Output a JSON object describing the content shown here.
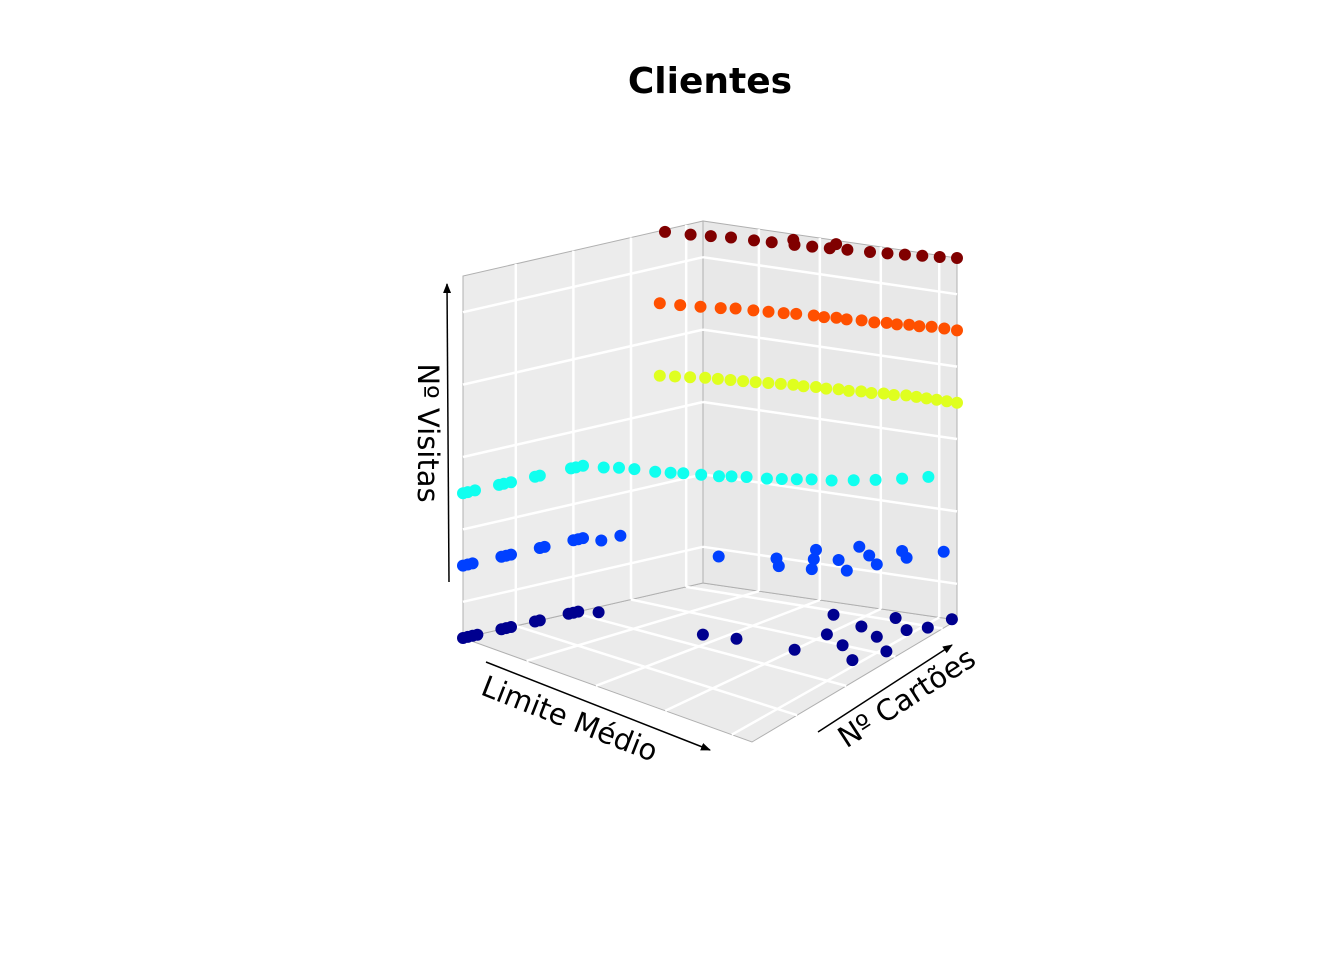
{
  "chart_data": {
    "type": "scatter",
    "projection": "3d",
    "title": "Clientes",
    "xlabel": "Limite Médio",
    "ylabel": "Nº Cartões",
    "zlabel": "Nº Visitas",
    "ticks_hidden": true,
    "grid": true,
    "colormap": "jet",
    "levels": [
      {
        "z": 0,
        "color": "#00008f"
      },
      {
        "z": 1,
        "color": "#0040ff"
      },
      {
        "z": 2,
        "color": "#10ffef"
      },
      {
        "z": 3,
        "color": "#dfff1f"
      },
      {
        "z": 4,
        "color": "#ff5000"
      },
      {
        "z": 5,
        "color": "#800000"
      }
    ],
    "points": [
      [
        0.0,
        0.0,
        0
      ],
      [
        0.02,
        0.0,
        0
      ],
      [
        0.04,
        0.0,
        0
      ],
      [
        0.06,
        0.0,
        0
      ],
      [
        0.16,
        0.0,
        0
      ],
      [
        0.18,
        0.0,
        0
      ],
      [
        0.2,
        0.0,
        0
      ],
      [
        0.3,
        0.0,
        0
      ],
      [
        0.32,
        0.0,
        0
      ],
      [
        0.44,
        0.0,
        0
      ],
      [
        0.46,
        0.0,
        0
      ],
      [
        0.48,
        0.0,
        0
      ],
      [
        0.52,
        0.04,
        0
      ],
      [
        0.55,
        0.4,
        0
      ],
      [
        0.58,
        0.5,
        0
      ],
      [
        0.6,
        0.7,
        0
      ],
      [
        0.62,
        0.9,
        0
      ],
      [
        0.7,
        0.8,
        0
      ],
      [
        0.72,
        0.95,
        0
      ],
      [
        0.75,
        0.7,
        0
      ],
      [
        0.8,
        0.85,
        0
      ],
      [
        0.85,
        0.75,
        0
      ],
      [
        0.88,
        0.9,
        0
      ],
      [
        0.9,
        0.6,
        0
      ],
      [
        0.92,
        0.95,
        0
      ],
      [
        0.95,
        0.8,
        0
      ],
      [
        1.0,
        0.98,
        0
      ],
      [
        0.0,
        0.0,
        1
      ],
      [
        0.02,
        0.0,
        1
      ],
      [
        0.04,
        0.0,
        1
      ],
      [
        0.16,
        0.0,
        1
      ],
      [
        0.18,
        0.0,
        1
      ],
      [
        0.2,
        0.0,
        1
      ],
      [
        0.32,
        0.0,
        1
      ],
      [
        0.34,
        0.0,
        1
      ],
      [
        0.46,
        0.0,
        1
      ],
      [
        0.48,
        0.0,
        1
      ],
      [
        0.5,
        0.0,
        1
      ],
      [
        0.52,
        0.05,
        1
      ],
      [
        0.6,
        0.05,
        1
      ],
      [
        0.62,
        0.4,
        1
      ],
      [
        0.65,
        0.6,
        1
      ],
      [
        0.68,
        0.7,
        1
      ],
      [
        0.7,
        0.55,
        1
      ],
      [
        0.72,
        0.8,
        1
      ],
      [
        0.75,
        0.65,
        1
      ],
      [
        0.78,
        0.72,
        1
      ],
      [
        0.8,
        0.85,
        1
      ],
      [
        0.82,
        0.6,
        1
      ],
      [
        0.85,
        0.78,
        1
      ],
      [
        0.88,
        0.9,
        1
      ],
      [
        0.9,
        0.7,
        1
      ],
      [
        0.92,
        0.85,
        1
      ],
      [
        0.96,
        0.98,
        1
      ],
      [
        0.0,
        0.0,
        2
      ],
      [
        0.02,
        0.0,
        2
      ],
      [
        0.05,
        0.0,
        2
      ],
      [
        0.15,
        0.0,
        2
      ],
      [
        0.17,
        0.0,
        2
      ],
      [
        0.2,
        0.0,
        2
      ],
      [
        0.3,
        0.0,
        2
      ],
      [
        0.32,
        0.0,
        2
      ],
      [
        0.45,
        0.0,
        2
      ],
      [
        0.47,
        0.0,
        2
      ],
      [
        0.5,
        0.0,
        2
      ],
      [
        0.53,
        0.05,
        2
      ],
      [
        0.56,
        0.08,
        2
      ],
      [
        0.58,
        0.12,
        2
      ],
      [
        0.6,
        0.18,
        2
      ],
      [
        0.62,
        0.22,
        2
      ],
      [
        0.64,
        0.25,
        2
      ],
      [
        0.66,
        0.3,
        2
      ],
      [
        0.68,
        0.35,
        2
      ],
      [
        0.7,
        0.38,
        2
      ],
      [
        0.72,
        0.42,
        2
      ],
      [
        0.74,
        0.48,
        2
      ],
      [
        0.76,
        0.52,
        2
      ],
      [
        0.78,
        0.56,
        2
      ],
      [
        0.8,
        0.6,
        2
      ],
      [
        0.82,
        0.66,
        2
      ],
      [
        0.85,
        0.72,
        2
      ],
      [
        0.88,
        0.78,
        2
      ],
      [
        0.92,
        0.85,
        2
      ],
      [
        0.96,
        0.92,
        2
      ],
      [
        0.82,
        0.0,
        3
      ],
      [
        0.84,
        0.04,
        3
      ],
      [
        0.86,
        0.08,
        3
      ],
      [
        0.88,
        0.12,
        3
      ],
      [
        0.89,
        0.16,
        3
      ],
      [
        0.9,
        0.2,
        3
      ],
      [
        0.91,
        0.24,
        3
      ],
      [
        0.92,
        0.28,
        3
      ],
      [
        0.93,
        0.32,
        3
      ],
      [
        0.94,
        0.36,
        3
      ],
      [
        0.95,
        0.4,
        3
      ],
      [
        0.95,
        0.44,
        3
      ],
      [
        0.96,
        0.48,
        3
      ],
      [
        0.96,
        0.52,
        3
      ],
      [
        0.97,
        0.56,
        3
      ],
      [
        0.97,
        0.6,
        3
      ],
      [
        0.98,
        0.64,
        3
      ],
      [
        0.98,
        0.68,
        3
      ],
      [
        0.99,
        0.72,
        3
      ],
      [
        0.99,
        0.76,
        3
      ],
      [
        1.0,
        0.8,
        3
      ],
      [
        1.0,
        0.84,
        3
      ],
      [
        1.0,
        0.88,
        3
      ],
      [
        1.0,
        0.92,
        3
      ],
      [
        1.0,
        0.96,
        3
      ],
      [
        1.0,
        1.0,
        3
      ],
      [
        0.82,
        0.0,
        4
      ],
      [
        0.84,
        0.06,
        4
      ],
      [
        0.86,
        0.12,
        4
      ],
      [
        0.88,
        0.18,
        4
      ],
      [
        0.9,
        0.22,
        4
      ],
      [
        0.91,
        0.28,
        4
      ],
      [
        0.92,
        0.33,
        4
      ],
      [
        0.93,
        0.38,
        4
      ],
      [
        0.94,
        0.42,
        4
      ],
      [
        0.95,
        0.48,
        4
      ],
      [
        0.95,
        0.52,
        4
      ],
      [
        0.96,
        0.56,
        4
      ],
      [
        0.96,
        0.6,
        4
      ],
      [
        0.97,
        0.65,
        4
      ],
      [
        0.97,
        0.7,
        4
      ],
      [
        0.98,
        0.74,
        4
      ],
      [
        0.98,
        0.78,
        4
      ],
      [
        0.99,
        0.82,
        4
      ],
      [
        0.99,
        0.86,
        4
      ],
      [
        1.0,
        0.9,
        4
      ],
      [
        1.0,
        0.95,
        4
      ],
      [
        1.0,
        1.0,
        4
      ],
      [
        0.82,
        0.02,
        5
      ],
      [
        0.84,
        0.1,
        5
      ],
      [
        0.86,
        0.16,
        5
      ],
      [
        0.88,
        0.22,
        5
      ],
      [
        0.89,
        0.3,
        5
      ],
      [
        0.9,
        0.36,
        5
      ],
      [
        0.91,
        0.44,
        5
      ],
      [
        0.92,
        0.5,
        5
      ],
      [
        0.93,
        0.56,
        5
      ],
      [
        0.94,
        0.62,
        5
      ],
      [
        0.95,
        0.7,
        5
      ],
      [
        0.96,
        0.76,
        5
      ],
      [
        0.97,
        0.82,
        5
      ],
      [
        0.98,
        0.88,
        5
      ],
      [
        0.99,
        0.94,
        5
      ],
      [
        1.0,
        1.0,
        5
      ],
      [
        0.95,
        0.4,
        5
      ],
      [
        0.97,
        0.55,
        5
      ]
    ]
  }
}
